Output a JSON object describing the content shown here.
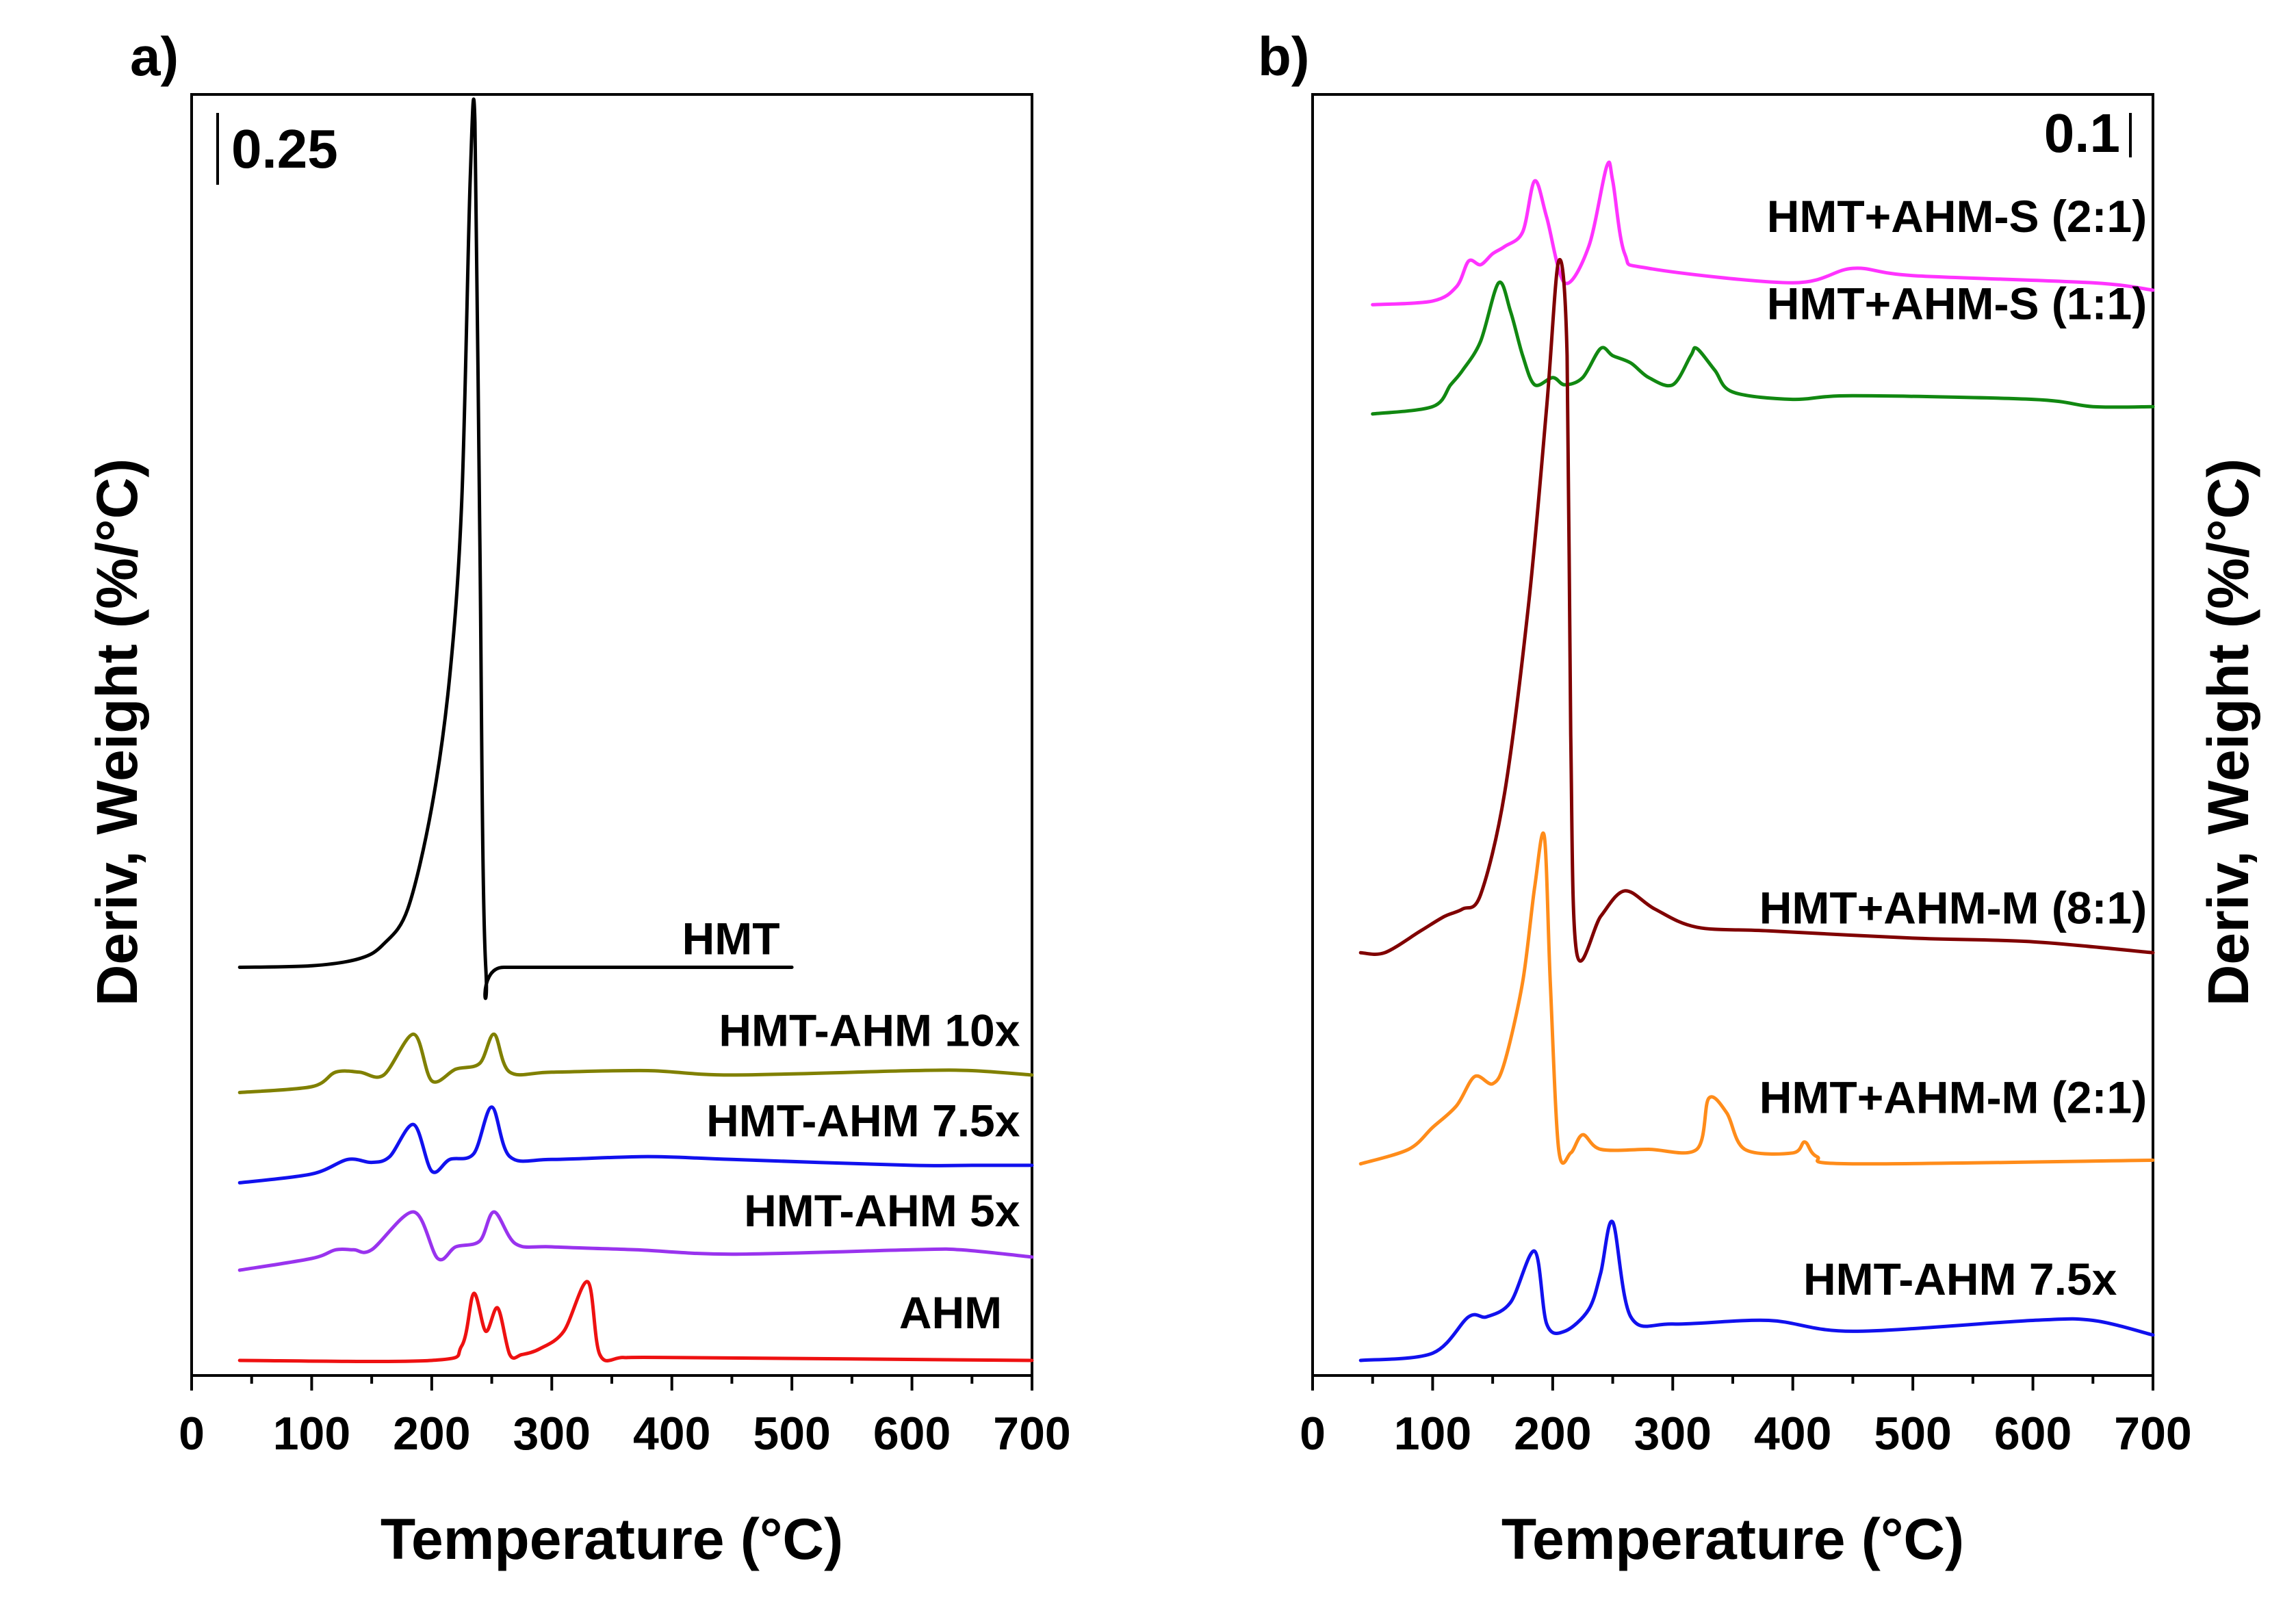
{
  "chart_data": [
    {
      "type": "line",
      "panel_label": "a)",
      "title": "",
      "xlabel": "Temperature (°C)",
      "ylabel": "Deriv, Weight (%/°C)",
      "xlim": [
        0,
        700
      ],
      "xticks": [
        0,
        100,
        200,
        300,
        400,
        500,
        600,
        700
      ],
      "ylim": [
        0,
        4.3
      ],
      "y_units": "%/°C, curves stacked with vertical offsets",
      "scale_bar_label": "0.25",
      "series": [
        {
          "name": "HMT",
          "color": "#000000",
          "offset": 1.35,
          "x": [
            40,
            100,
            140,
            160,
            180,
            200,
            215,
            225,
            232,
            236,
            240,
            245,
            260,
            400,
            500
          ],
          "y": [
            0,
            0.005,
            0.03,
            0.08,
            0.2,
            0.55,
            1.0,
            1.6,
            2.7,
            2.9,
            1.5,
            0.0,
            0.0,
            0.0,
            0.0
          ]
        },
        {
          "name": "HMT-AHM 10x",
          "color": "#808000",
          "offset": 0.92,
          "x": [
            40,
            100,
            120,
            140,
            160,
            185,
            200,
            220,
            240,
            252,
            265,
            300,
            380,
            450,
            600,
            650,
            700
          ],
          "y": [
            0,
            0.02,
            0.07,
            0.07,
            0.06,
            0.2,
            0.04,
            0.08,
            0.1,
            0.2,
            0.07,
            0.07,
            0.075,
            0.06,
            0.075,
            0.075,
            0.06
          ]
        },
        {
          "name": "HMT-AHM 7.5x",
          "color": "#1111ee",
          "offset": 0.61,
          "x": [
            40,
            100,
            130,
            150,
            165,
            185,
            200,
            215,
            235,
            250,
            265,
            300,
            380,
            450,
            600,
            650,
            700
          ],
          "y": [
            0,
            0.03,
            0.08,
            0.07,
            0.09,
            0.2,
            0.04,
            0.08,
            0.1,
            0.26,
            0.09,
            0.08,
            0.09,
            0.08,
            0.06,
            0.06,
            0.06
          ]
        },
        {
          "name": "HMT-AHM 5x",
          "color": "#9933ee",
          "offset": 0.31,
          "x": [
            40,
            100,
            120,
            135,
            150,
            185,
            205,
            220,
            240,
            252,
            270,
            300,
            370,
            450,
            600,
            640,
            700
          ],
          "y": [
            0,
            0.04,
            0.07,
            0.07,
            0.07,
            0.2,
            0.04,
            0.08,
            0.1,
            0.2,
            0.09,
            0.08,
            0.07,
            0.055,
            0.07,
            0.07,
            0.045
          ]
        },
        {
          "name": "AHM",
          "color": "#ee1111",
          "offset": 0.0,
          "x": [
            40,
            200,
            225,
            235,
            245,
            255,
            265,
            275,
            290,
            310,
            330,
            340,
            360,
            400,
            700
          ],
          "y": [
            0,
            0,
            0.05,
            0.23,
            0.1,
            0.18,
            0.02,
            0.02,
            0.04,
            0.1,
            0.27,
            0.02,
            0.01,
            0.01,
            0.0
          ]
        }
      ],
      "series_labels": [
        {
          "text": "HMT",
          "anchor_x": 490,
          "anchor_y": 1.395
        },
        {
          "text": "HMT-AHM 10x",
          "anchor_x": 690,
          "anchor_y": 1.08
        },
        {
          "text": "HMT-AHM 7.5x",
          "anchor_x": 690,
          "anchor_y": 0.77
        },
        {
          "text": "HMT-AHM 5x",
          "anchor_x": 690,
          "anchor_y": 0.46
        },
        {
          "text": "AHM",
          "anchor_x": 675,
          "anchor_y": 0.11
        }
      ]
    },
    {
      "type": "line",
      "panel_label": "b)",
      "title": "",
      "xlabel": "Temperature (°C)",
      "ylabel": "Deriv, Weight (%/°C)",
      "xlim": [
        0,
        700
      ],
      "xticks": [
        0,
        100,
        200,
        300,
        400,
        500,
        600,
        700
      ],
      "ylim": [
        0,
        1.72
      ],
      "y_units": "%/°C, curves stacked with vertical offsets",
      "scale_bar_label": "0.1",
      "series": [
        {
          "name": "HMT+AHM-S (2:1)",
          "color": "#ff33ff",
          "offset": 1.45,
          "x": [
            50,
            100,
            120,
            130,
            140,
            150,
            160,
            175,
            185,
            195,
            210,
            230,
            245,
            250,
            260,
            280,
            400,
            450,
            500,
            650,
            700
          ],
          "y": [
            0,
            0.005,
            0.025,
            0.06,
            0.055,
            0.07,
            0.08,
            0.1,
            0.17,
            0.12,
            0.03,
            0.08,
            0.19,
            0.17,
            0.07,
            0.05,
            0.03,
            0.05,
            0.04,
            0.03,
            0.02
          ]
        },
        {
          "name": "HMT+AHM-S (1:1)",
          "color": "#118811",
          "offset": 1.3,
          "x": [
            50,
            100,
            115,
            125,
            140,
            155,
            165,
            175,
            185,
            200,
            210,
            225,
            240,
            250,
            265,
            280,
            300,
            315,
            320,
            335,
            350,
            400,
            450,
            600,
            650,
            700
          ],
          "y": [
            0,
            0.01,
            0.04,
            0.06,
            0.1,
            0.18,
            0.14,
            0.08,
            0.04,
            0.05,
            0.04,
            0.05,
            0.09,
            0.08,
            0.07,
            0.05,
            0.04,
            0.08,
            0.09,
            0.06,
            0.03,
            0.02,
            0.025,
            0.02,
            0.01,
            0.01
          ]
        },
        {
          "name": "HMT+AHM-M (8:1)",
          "color": "#800000",
          "offset": 0.56,
          "x": [
            40,
            60,
            90,
            110,
            125,
            140,
            160,
            180,
            195,
            205,
            212,
            215,
            220,
            240,
            260,
            285,
            320,
            380,
            500,
            600,
            700
          ],
          "y": [
            0,
            0,
            0.03,
            0.05,
            0.06,
            0.08,
            0.22,
            0.48,
            0.75,
            0.95,
            0.82,
            0.3,
            0.0,
            0.05,
            0.085,
            0.06,
            0.035,
            0.03,
            0.02,
            0.015,
            0.0
          ]
        },
        {
          "name": "HMT+AHM-M (2:1)",
          "color": "#ff8c1a",
          "offset": 0.27,
          "x": [
            40,
            80,
            100,
            120,
            135,
            150,
            160,
            175,
            185,
            193,
            198,
            205,
            215,
            225,
            240,
            280,
            320,
            330,
            345,
            360,
            400,
            410,
            420,
            450,
            700
          ],
          "y": [
            0,
            0.02,
            0.05,
            0.08,
            0.12,
            0.11,
            0.14,
            0.25,
            0.38,
            0.45,
            0.25,
            0.02,
            0.015,
            0.04,
            0.02,
            0.02,
            0.02,
            0.09,
            0.07,
            0.02,
            0.015,
            0.03,
            0.01,
            0.0,
            0.005
          ]
        },
        {
          "name": "HMT-AHM 7.5x",
          "color": "#1111ee",
          "offset": 0.0,
          "x": [
            40,
            100,
            130,
            145,
            165,
            185,
            195,
            210,
            230,
            240,
            250,
            265,
            300,
            380,
            450,
            600,
            650,
            700
          ],
          "y": [
            0,
            0.01,
            0.06,
            0.06,
            0.08,
            0.15,
            0.05,
            0.04,
            0.07,
            0.12,
            0.19,
            0.06,
            0.05,
            0.055,
            0.04,
            0.055,
            0.055,
            0.035
          ]
        }
      ],
      "series_labels": [
        {
          "text": "HMT+AHM-S (2:1)",
          "anchor_x": 695,
          "anchor_y": 1.55
        },
        {
          "text": "HMT+AHM-S (1:1)",
          "anchor_x": 695,
          "anchor_y": 1.43
        },
        {
          "text": "HMT+AHM-M (8:1)",
          "anchor_x": 695,
          "anchor_y": 0.6
        },
        {
          "text": "HMT+AHM-M (2:1)",
          "anchor_x": 695,
          "anchor_y": 0.34
        },
        {
          "text": "HMT-AHM 7.5x",
          "anchor_x": 670,
          "anchor_y": 0.09
        }
      ]
    }
  ]
}
